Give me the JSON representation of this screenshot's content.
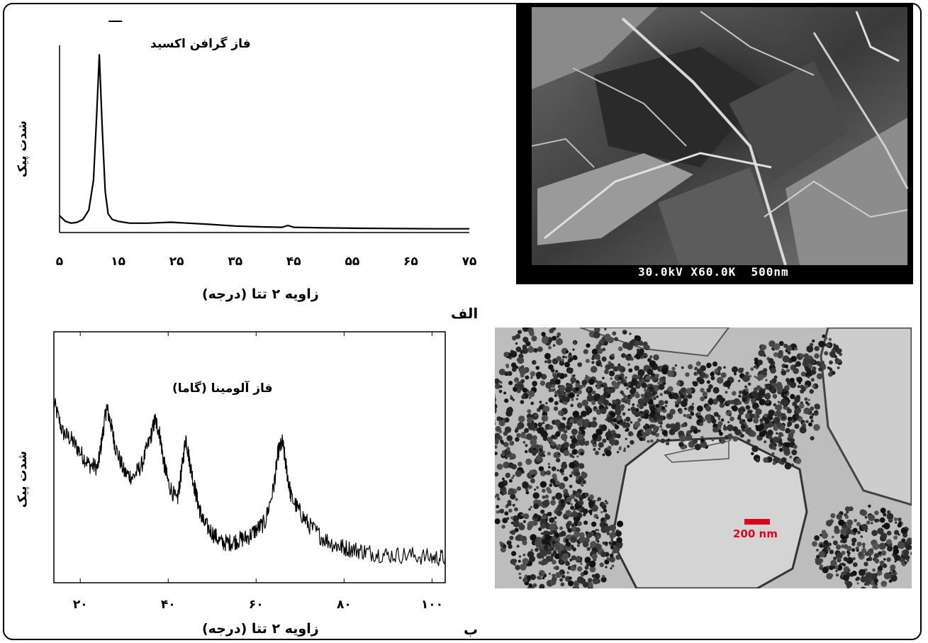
{
  "figure": {
    "panel_a_label": "الف",
    "panel_b_label": "ب"
  },
  "sem_image": {
    "caption": "30.0kV X60.0K  500nm",
    "description_icon": "sem-micrograph"
  },
  "tem_image": {
    "scale_bar_label": "200 nm",
    "scale_bar_color": "#e0001a",
    "description_icon": "tem-micrograph"
  },
  "chart_data": [
    {
      "type": "line",
      "title": "",
      "annotation": "فاز گرافن اکسید",
      "xlabel": "زاویه ۲ تتا (درجه)",
      "ylabel": "شدت پیک",
      "xlim": [
        5,
        75
      ],
      "x_ticks": [
        "۵",
        "۱۵",
        "۲۵",
        "۳۵",
        "۴۵",
        "۵۵",
        "۶۵",
        "۷۵"
      ],
      "x_tick_values": [
        5,
        15,
        25,
        35,
        45,
        55,
        65,
        75
      ],
      "ylim": [
        0,
        100
      ],
      "x": [
        5,
        6,
        7,
        8,
        9,
        10,
        10.8,
        11.3,
        11.8,
        12.3,
        12.8,
        13.3,
        14,
        15,
        17,
        20,
        24,
        27,
        30,
        35,
        40,
        43,
        44,
        45,
        50,
        55,
        60,
        65,
        69,
        72,
        75
      ],
      "y": [
        9,
        6,
        5,
        5.5,
        7,
        12,
        28,
        60,
        95,
        55,
        22,
        10,
        7,
        6,
        5,
        5,
        5.5,
        5,
        4.5,
        3.5,
        3,
        2.8,
        3.8,
        2.8,
        2.5,
        2.3,
        2.2,
        2.1,
        2,
        2,
        2
      ],
      "peaks": [
        {
          "x": 11.8,
          "label": "فاز گرافن اکسید"
        }
      ]
    },
    {
      "type": "line",
      "title": "",
      "annotation": "فاز آلومینا (گاما)",
      "xlabel": "زاویه ۲ تتا (درجه)",
      "ylabel": "شدت پیک",
      "xlim": [
        14,
        103
      ],
      "x_ticks": [
        "۲۰",
        "۴۰",
        "۶۰",
        "۸۰",
        "۱۰۰"
      ],
      "x_tick_values": [
        20,
        40,
        60,
        80,
        100
      ],
      "ylim": [
        0,
        100
      ],
      "x": [
        14,
        16,
        18,
        20,
        22,
        24,
        25,
        26,
        27,
        28,
        30,
        32,
        34,
        36,
        37,
        38,
        39,
        40,
        42,
        43,
        44,
        45,
        46,
        47,
        48,
        50,
        52,
        54,
        56,
        58,
        60,
        62,
        64,
        65,
        66,
        67,
        68,
        70,
        72,
        75,
        78,
        80,
        83,
        86,
        90,
        95,
        100,
        103
      ],
      "y": [
        72,
        60,
        57,
        52,
        47,
        46,
        58,
        70,
        63,
        54,
        44,
        42,
        47,
        58,
        65,
        60,
        48,
        40,
        32,
        44,
        58,
        47,
        38,
        30,
        24,
        20,
        16,
        16,
        17,
        18,
        21,
        24,
        38,
        52,
        56,
        44,
        34,
        28,
        23,
        18,
        15,
        14,
        13,
        12,
        11,
        11,
        10,
        10
      ]
    }
  ]
}
